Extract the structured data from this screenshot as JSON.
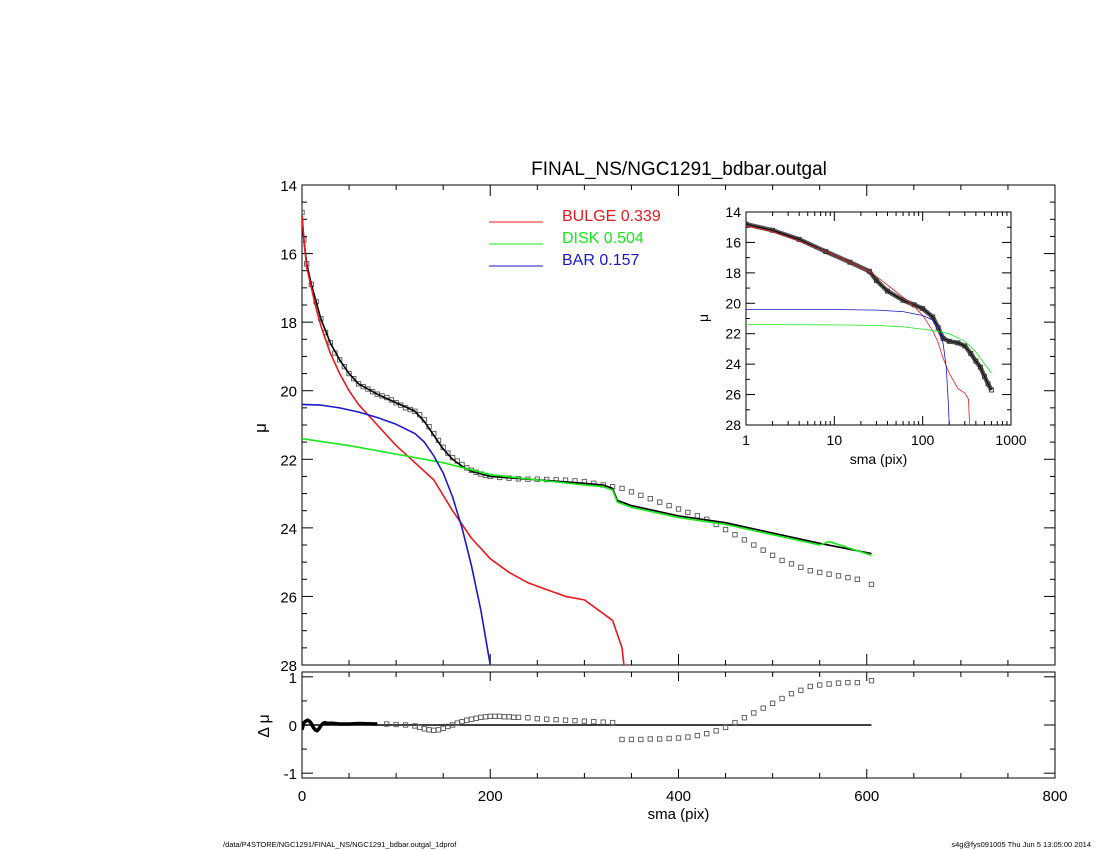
{
  "footer": {
    "left": "/data/P4STORE/NGC1291/FINAL_NS/NGC1291_bdbar.outgal_1dprof",
    "right": "s4g@fys091005  Thu Jun  5 13:05:00 2014"
  },
  "colors": {
    "bulge": "#e8181e",
    "disk": "#18e818",
    "bar": "#1818c8",
    "data": "#555555",
    "model": "#000000"
  },
  "chart_data": [
    {
      "id": "main",
      "type": "line",
      "title": "FINAL_NS/NGC1291_bdbar.outgal",
      "xlabel": "",
      "ylabel": "μ",
      "xlim": [
        0,
        800
      ],
      "ylim": [
        28,
        14
      ],
      "yticks": [
        14,
        16,
        18,
        20,
        22,
        24,
        26,
        28
      ],
      "legend": {
        "placement": "top-center",
        "entries": [
          {
            "label": "BULGE  0.339",
            "color": "#e8181e"
          },
          {
            "label": "DISK  0.504",
            "color": "#18e818"
          },
          {
            "label": "BAR  0.157",
            "color": "#1818c8"
          }
        ]
      },
      "series": [
        {
          "name": "BULGE",
          "color": "#e8181e",
          "x": [
            0,
            2,
            5,
            10,
            15,
            20,
            30,
            40,
            50,
            60,
            80,
            100,
            120,
            140,
            160,
            180,
            200,
            210,
            220,
            240,
            260,
            280,
            300,
            320,
            330,
            340,
            342
          ],
          "y": [
            14.9,
            15.6,
            16.4,
            17.0,
            17.6,
            18.1,
            18.9,
            19.5,
            20.0,
            20.4,
            21.0,
            21.6,
            22.1,
            22.6,
            23.5,
            24.3,
            24.9,
            25.1,
            25.3,
            25.6,
            25.8,
            26.0,
            26.1,
            26.5,
            26.7,
            27.5,
            28.0
          ]
        },
        {
          "name": "DISK",
          "color": "#18e818",
          "x": [
            0,
            50,
            100,
            150,
            200,
            250,
            300,
            320,
            330,
            335,
            350,
            400,
            450,
            500,
            550,
            560,
            605
          ],
          "y": [
            21.4,
            21.6,
            21.85,
            22.1,
            22.45,
            22.6,
            22.75,
            22.8,
            22.9,
            23.25,
            23.4,
            23.7,
            23.9,
            24.2,
            24.5,
            24.4,
            24.8
          ]
        },
        {
          "name": "BAR",
          "color": "#1818c8",
          "x": [
            0,
            20,
            40,
            60,
            80,
            100,
            120,
            130,
            140,
            150,
            160,
            170,
            180,
            190,
            195,
            200
          ],
          "y": [
            20.4,
            20.42,
            20.5,
            20.62,
            20.78,
            20.98,
            21.25,
            21.5,
            21.9,
            22.4,
            23.1,
            24.0,
            25.1,
            26.4,
            27.2,
            28.0
          ]
        },
        {
          "name": "",
          "color": "#000000",
          "style": "solid",
          "role": "total",
          "x": [
            0,
            2,
            5,
            10,
            15,
            20,
            30,
            40,
            50,
            60,
            80,
            100,
            120,
            130,
            140,
            150,
            160,
            170,
            180,
            200,
            250,
            300,
            320,
            330,
            335,
            350,
            400,
            450,
            500,
            550,
            605
          ],
          "y": [
            14.9,
            15.6,
            16.3,
            16.9,
            17.4,
            17.9,
            18.6,
            19.1,
            19.5,
            19.8,
            20.1,
            20.35,
            20.6,
            20.9,
            21.3,
            21.7,
            22.0,
            22.2,
            22.35,
            22.5,
            22.6,
            22.7,
            22.75,
            22.85,
            23.2,
            23.35,
            23.65,
            23.85,
            24.15,
            24.45,
            24.75
          ]
        },
        {
          "name": "",
          "color": "#555555",
          "style": "marker-square",
          "role": "observed",
          "x": [
            0,
            2,
            5,
            10,
            15,
            20,
            25,
            30,
            35,
            40,
            45,
            50,
            55,
            60,
            65,
            70,
            75,
            80,
            85,
            90,
            95,
            100,
            105,
            110,
            115,
            120,
            125,
            130,
            135,
            140,
            145,
            150,
            155,
            160,
            165,
            170,
            175,
            180,
            185,
            190,
            195,
            200,
            210,
            220,
            230,
            240,
            250,
            260,
            270,
            280,
            290,
            300,
            310,
            320,
            330,
            340,
            350,
            360,
            370,
            380,
            390,
            400,
            410,
            420,
            430,
            440,
            450,
            460,
            470,
            480,
            490,
            500,
            510,
            520,
            530,
            540,
            550,
            560,
            570,
            580,
            590,
            605
          ],
          "y": [
            14.8,
            15.6,
            16.3,
            16.9,
            17.4,
            17.9,
            18.3,
            18.6,
            18.9,
            19.1,
            19.3,
            19.5,
            19.65,
            19.8,
            19.88,
            19.95,
            20.03,
            20.1,
            20.15,
            20.2,
            20.27,
            20.35,
            20.42,
            20.5,
            20.55,
            20.6,
            20.7,
            20.85,
            21.05,
            21.25,
            21.45,
            21.65,
            21.82,
            21.95,
            22.05,
            22.15,
            22.25,
            22.32,
            22.38,
            22.43,
            22.47,
            22.5,
            22.53,
            22.55,
            22.57,
            22.58,
            22.58,
            22.59,
            22.6,
            22.61,
            22.63,
            22.65,
            22.7,
            22.75,
            22.8,
            22.85,
            22.95,
            23.05,
            23.15,
            23.25,
            23.35,
            23.45,
            23.55,
            23.65,
            23.75,
            23.9,
            24.05,
            24.2,
            24.35,
            24.5,
            24.65,
            24.8,
            24.95,
            25.05,
            25.15,
            25.25,
            25.3,
            25.35,
            25.4,
            25.45,
            25.5,
            25.65
          ]
        }
      ]
    },
    {
      "id": "residual",
      "type": "scatter",
      "xlabel": "sma (pix)",
      "ylabel": "Δ μ",
      "xlim": [
        0,
        800
      ],
      "ylim": [
        -1.1,
        1.1
      ],
      "xticks": [
        0,
        200,
        400,
        600,
        800
      ],
      "yticks": [
        -1,
        0,
        1
      ],
      "series": [
        {
          "name": "",
          "color": "#000000",
          "style": "solid",
          "role": "zero-line",
          "x": [
            0,
            605
          ],
          "y": [
            0,
            0
          ]
        },
        {
          "name": "",
          "color": "#000000",
          "style": "thick",
          "role": "inner-residual",
          "x": [
            0,
            2,
            4,
            6,
            8,
            10,
            12,
            14,
            16,
            18,
            20,
            22,
            24,
            26,
            28,
            30,
            35,
            40,
            50,
            60,
            80
          ],
          "y": [
            -0.1,
            0.05,
            0.08,
            0.1,
            0.08,
            0.03,
            -0.05,
            -0.1,
            -0.12,
            -0.08,
            -0.02,
            0.03,
            0.05,
            0.04,
            0.03,
            0.04,
            0.03,
            0.02,
            0.02,
            0.03,
            0.02
          ]
        },
        {
          "name": "",
          "color": "#555555",
          "style": "marker-square",
          "role": "residual",
          "x": [
            90,
            100,
            110,
            120,
            125,
            130,
            135,
            140,
            145,
            150,
            155,
            160,
            165,
            170,
            175,
            180,
            185,
            190,
            195,
            200,
            205,
            210,
            215,
            220,
            225,
            230,
            240,
            250,
            260,
            270,
            280,
            290,
            300,
            310,
            320,
            330,
            340,
            350,
            360,
            370,
            380,
            390,
            400,
            410,
            420,
            430,
            440,
            450,
            460,
            470,
            480,
            490,
            500,
            510,
            520,
            530,
            540,
            550,
            560,
            570,
            580,
            590,
            605
          ],
          "y": [
            0.02,
            0.01,
            0.0,
            -0.02,
            -0.05,
            -0.08,
            -0.1,
            -0.11,
            -0.1,
            -0.07,
            -0.03,
            0.0,
            0.04,
            0.07,
            0.1,
            0.12,
            0.14,
            0.16,
            0.17,
            0.18,
            0.18,
            0.18,
            0.17,
            0.17,
            0.16,
            0.16,
            0.15,
            0.13,
            0.12,
            0.11,
            0.1,
            0.09,
            0.08,
            0.07,
            0.06,
            0.05,
            -0.3,
            -0.3,
            -0.3,
            -0.29,
            -0.29,
            -0.28,
            -0.27,
            -0.25,
            -0.22,
            -0.18,
            -0.12,
            -0.05,
            0.05,
            0.15,
            0.25,
            0.35,
            0.45,
            0.55,
            0.65,
            0.72,
            0.8,
            0.83,
            0.85,
            0.87,
            0.88,
            0.88,
            0.92
          ]
        }
      ]
    },
    {
      "id": "inset",
      "type": "line",
      "xlabel": "sma (pix)",
      "ylabel": "μ",
      "xscale": "log",
      "xlim": [
        1,
        1000
      ],
      "ylim": [
        28,
        14
      ],
      "xticks": [
        1,
        10,
        100,
        1000
      ],
      "yticks": [
        14,
        16,
        18,
        20,
        22,
        24,
        26,
        28
      ],
      "series": [
        {
          "name": "BULGE",
          "color": "#e8181e",
          "x": [
            1,
            2,
            4,
            8,
            15,
            25,
            40,
            60,
            80,
            100,
            130,
            150,
            170,
            200,
            250,
            300,
            330,
            340
          ],
          "y": [
            14.9,
            15.3,
            15.9,
            16.6,
            17.3,
            17.9,
            18.8,
            19.6,
            20.2,
            20.8,
            21.8,
            22.6,
            23.6,
            24.6,
            25.6,
            25.9,
            26.3,
            28
          ]
        },
        {
          "name": "DISK",
          "color": "#18e818",
          "x": [
            1,
            10,
            30,
            60,
            100,
            150,
            200,
            300,
            400,
            600
          ],
          "y": [
            21.4,
            21.42,
            21.45,
            21.55,
            21.7,
            21.85,
            22.0,
            22.5,
            23.2,
            24.6
          ]
        },
        {
          "name": "BAR",
          "color": "#1818c8",
          "x": [
            1,
            10,
            30,
            60,
            100,
            130,
            150,
            170,
            185,
            195,
            200
          ],
          "y": [
            20.4,
            20.41,
            20.45,
            20.55,
            20.8,
            21.1,
            21.6,
            22.6,
            24.2,
            26.5,
            28
          ]
        },
        {
          "name": "",
          "color": "#333333",
          "style": "thick-marker",
          "role": "observed",
          "x": [
            1,
            2,
            4,
            8,
            15,
            25,
            30,
            40,
            60,
            80,
            100,
            130,
            150,
            170,
            200,
            250,
            300,
            350,
            400,
            450,
            500,
            550,
            600
          ],
          "y": [
            14.8,
            15.2,
            15.8,
            16.6,
            17.3,
            17.9,
            18.5,
            19.2,
            19.8,
            20.1,
            20.35,
            20.9,
            21.6,
            22.3,
            22.5,
            22.6,
            22.8,
            23.3,
            23.8,
            24.2,
            24.8,
            25.3,
            25.7
          ]
        }
      ]
    }
  ]
}
